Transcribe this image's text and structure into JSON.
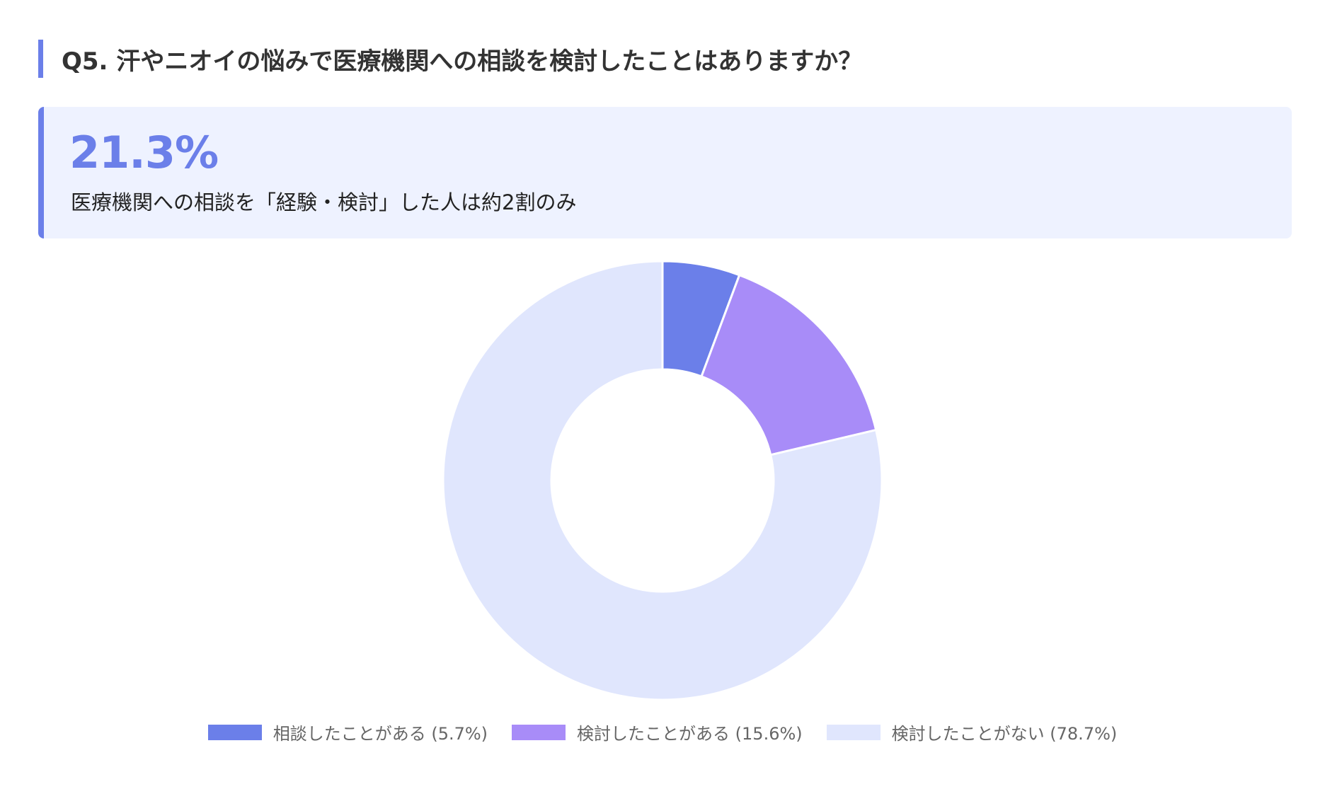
{
  "question": "Q5. 汗やニオイの悩みで医療機関への相談を検討したことはありますか？",
  "highlight": {
    "value": "21.3%",
    "caption": "医療機関への相談を「経験・検討」した人は約2割のみ"
  },
  "chart_data": {
    "type": "pie",
    "donut": true,
    "series": [
      {
        "name": "相談したことがある (5.7%)",
        "value": 5.7,
        "color": "#6b7fe9"
      },
      {
        "name": "検討したことがある (15.6%)",
        "value": 15.6,
        "color": "#a88cf8"
      },
      {
        "name": "検討したことがない (78.7%)",
        "value": 78.7,
        "color": "#e0e6fd"
      }
    ],
    "legend_position": "bottom"
  }
}
